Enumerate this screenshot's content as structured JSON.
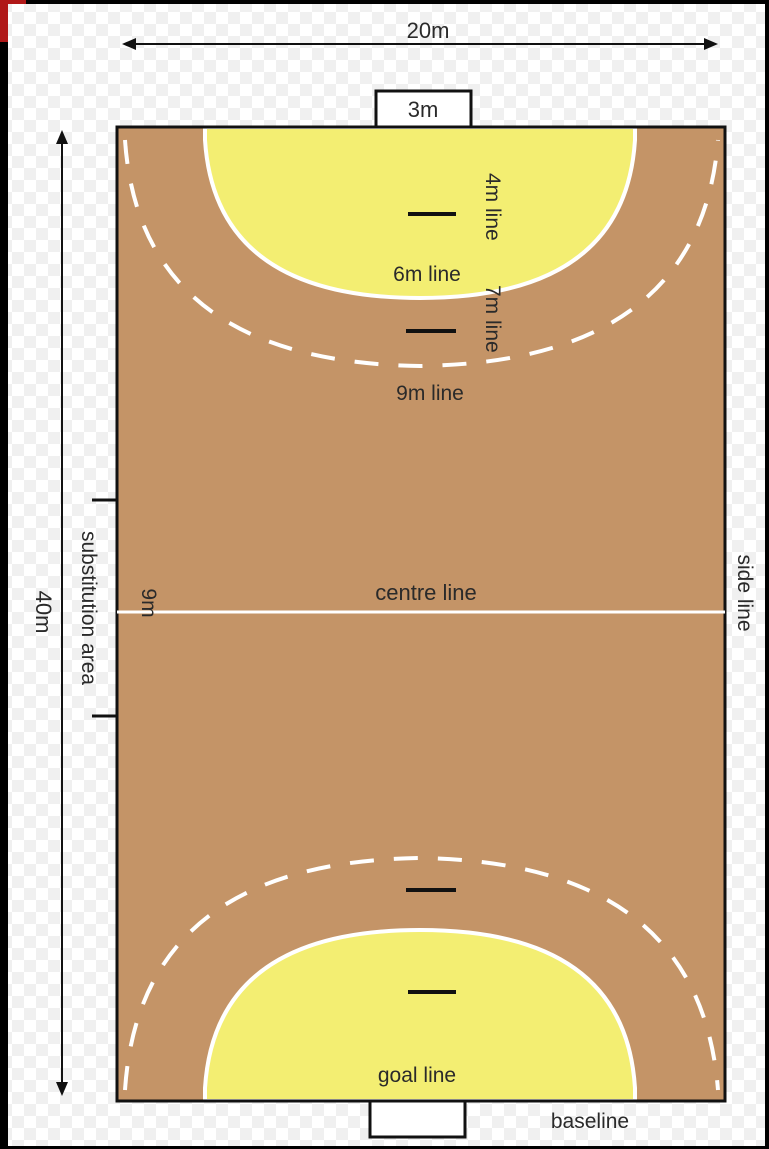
{
  "labels": {
    "width": "20m",
    "length": "40m",
    "goal_width": "3m",
    "line_4m": "4m line",
    "line_6m": "6m line",
    "line_7m": "7m line",
    "line_9m": "9m  line",
    "substitution_area": "substitution area",
    "sub_distance": "9m",
    "centre_line": "centre line",
    "side_line": "side line",
    "goal_line": "goal line",
    "baseline": "baseline"
  },
  "colors": {
    "court": "#c49467",
    "goal_area": "#f3ee72",
    "lines": "#ffffff",
    "outline": "#111111",
    "frame": "#000000",
    "corner_accent": "#b01818"
  }
}
